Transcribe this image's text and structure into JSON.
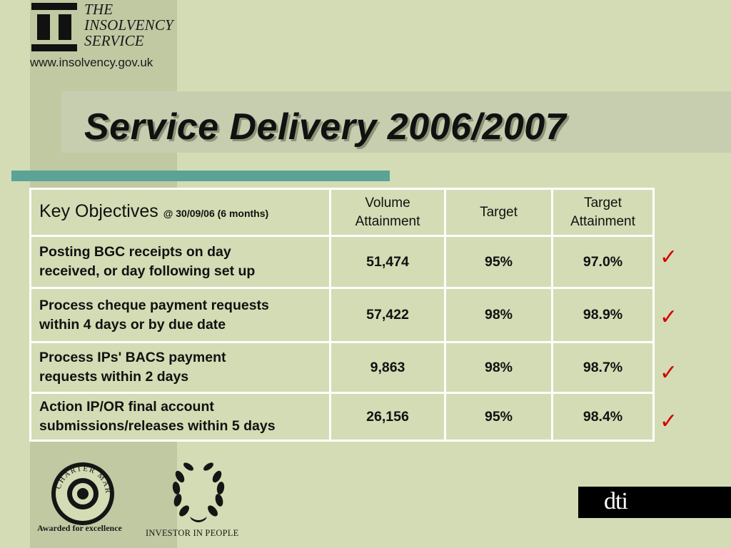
{
  "logo": {
    "line1": "THE",
    "line2": "INSOLVENCY",
    "line3": "SERVICE",
    "url": "www.insolvency.gov.uk"
  },
  "title": "Service Delivery 2006/2007",
  "table": {
    "headers": {
      "key_objectives": "Key Objectives",
      "key_objectives_sub": "@ 30/09/06 (6 months)",
      "volume_line1": "Volume",
      "volume_line2": "Attainment",
      "target": "Target",
      "target_att_line1": "Target",
      "target_att_line2": "Attainment"
    },
    "rows": [
      {
        "obj_line1": "Posting BGC receipts on day",
        "obj_line2": "received, or day following set up",
        "volume": "51,474",
        "target": "95%",
        "attainment": "97.0%"
      },
      {
        "obj_line1": "Process cheque payment requests",
        "obj_line2": "within 4 days or by due date",
        "volume": "57,422",
        "target": "98%",
        "attainment": "98.9%"
      },
      {
        "obj_line1": "Process IPs' BACS payment",
        "obj_line2": "requests within 2 days",
        "volume": "9,863",
        "target": "98%",
        "attainment": "98.7%"
      },
      {
        "obj_line1": "Action IP/OR final account",
        "obj_line2": "submissions/releases within 5 days",
        "volume": "26,156",
        "target": "95%",
        "attainment": "98.4%"
      }
    ]
  },
  "check_glyph": "✓",
  "check_color": "#d40000",
  "charter_mark": {
    "seal_text": "CHARTER MARK",
    "caption": "Awarded for excellence"
  },
  "investor": {
    "caption": "INVESTOR IN PEOPLE"
  },
  "dti": {
    "text": "dti"
  }
}
